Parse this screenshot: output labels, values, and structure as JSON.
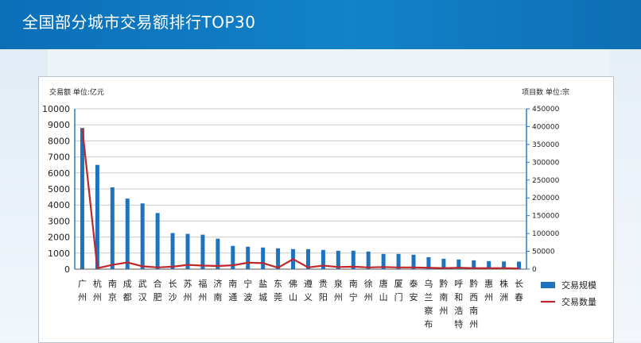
{
  "header": {
    "title": "全国部分城市交易额排行TOP30"
  },
  "colors": {
    "header": "#0f77c1",
    "bar": "#1e73be",
    "line": "#c0272d"
  },
  "chart_data": {
    "type": "bar",
    "title": "全国部分城市交易额排行TOP30",
    "left_axis_note": "交易额  单位:亿元",
    "right_axis_note": "项目数 单位:宗",
    "categories": [
      "广州",
      "杭州",
      "南京",
      "成都",
      "武汉",
      "合肥",
      "长沙",
      "苏州",
      "福州",
      "济南",
      "南通",
      "宁波",
      "盐城",
      "东莞",
      "佛山",
      "遵义",
      "贵阳",
      "泉州",
      "南宁",
      "徐州",
      "唐山",
      "厦门",
      "泰安",
      "乌兰察布",
      "黔南州",
      "呼和浩特",
      "黔西南州",
      "惠州",
      "株洲",
      "长春"
    ],
    "category_lines": [
      [
        "广",
        "州"
      ],
      [
        "杭",
        "州"
      ],
      [
        "南",
        "京"
      ],
      [
        "成",
        "都"
      ],
      [
        "武",
        "汉"
      ],
      [
        "合",
        "肥"
      ],
      [
        "长",
        "沙"
      ],
      [
        "苏",
        "州"
      ],
      [
        "福",
        "州"
      ],
      [
        "济",
        "南"
      ],
      [
        "南",
        "通"
      ],
      [
        "宁",
        "波"
      ],
      [
        "盐",
        "城"
      ],
      [
        "东",
        "莞"
      ],
      [
        "佛",
        "山"
      ],
      [
        "遵",
        "义"
      ],
      [
        "贵",
        "阳"
      ],
      [
        "泉",
        "州"
      ],
      [
        "南",
        "宁"
      ],
      [
        "徐",
        "州"
      ],
      [
        "唐",
        "山"
      ],
      [
        "厦",
        "门"
      ],
      [
        "泰",
        "安"
      ],
      [
        "乌",
        "兰",
        "察",
        "布"
      ],
      [
        "黔",
        "南",
        "州"
      ],
      [
        "呼",
        "和",
        "浩",
        "特"
      ],
      [
        "黔",
        "西",
        "南",
        "州"
      ],
      [
        "惠",
        "州"
      ],
      [
        "株",
        "洲"
      ],
      [
        "长",
        "春"
      ]
    ],
    "series": [
      {
        "name": "交易规模",
        "type": "bar",
        "axis": "left",
        "values": [
          8800,
          6500,
          5100,
          4400,
          4100,
          3500,
          2250,
          2200,
          2150,
          1900,
          1450,
          1400,
          1350,
          1300,
          1250,
          1250,
          1200,
          1150,
          1150,
          1100,
          950,
          950,
          900,
          750,
          650,
          600,
          550,
          500,
          480,
          470
        ]
      },
      {
        "name": "交易数量",
        "type": "line",
        "axis": "right",
        "values": [
          395000,
          3000,
          12000,
          19000,
          8000,
          5000,
          7000,
          12000,
          10000,
          9000,
          11000,
          18000,
          17000,
          4000,
          28000,
          5000,
          10000,
          6000,
          7000,
          5000,
          6000,
          5000,
          5000,
          4000,
          3000,
          4000,
          3000,
          3000,
          3000,
          2000
        ]
      }
    ],
    "ylim_left": [
      0,
      10000
    ],
    "ylim_right": [
      0,
      450000
    ],
    "yticks_left": [
      "10000",
      "9000",
      "8000",
      "7000",
      "6000",
      "5000",
      "4000",
      "3000",
      "2000",
      "1000",
      "0"
    ],
    "yticks_right": [
      "450000",
      "400000",
      "350000",
      "300000",
      "250000",
      "200000",
      "150000",
      "100000",
      "50000",
      "0"
    ],
    "grid": true,
    "legend": "right"
  }
}
